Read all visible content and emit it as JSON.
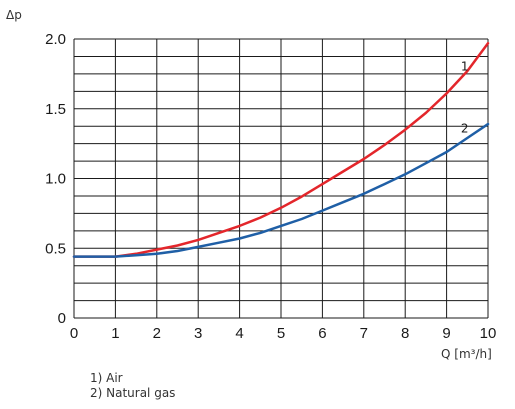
{
  "chart_data": {
    "type": "line",
    "ylabel": "Δp",
    "xlabel": "Q [m³/h]",
    "xlim": [
      0,
      10
    ],
    "ylim": [
      0,
      2.0
    ],
    "x_ticks": [
      0,
      1,
      2,
      3,
      4,
      5,
      6,
      7,
      8,
      9,
      10
    ],
    "y_ticks": [
      "0",
      "0.5",
      "1.0",
      "1.5",
      "2.0"
    ],
    "grid": true,
    "x": [
      0,
      0.5,
      1,
      1.5,
      2,
      2.5,
      3,
      3.5,
      4,
      4.5,
      5,
      5.5,
      6,
      6.5,
      7,
      7.5,
      8,
      8.5,
      9,
      9.5,
      10
    ],
    "series": [
      {
        "name": "1",
        "color": "#e3262b",
        "values": [
          0.44,
          0.44,
          0.44,
          0.46,
          0.49,
          0.52,
          0.56,
          0.61,
          0.66,
          0.72,
          0.79,
          0.87,
          0.96,
          1.05,
          1.14,
          1.24,
          1.35,
          1.47,
          1.61,
          1.77,
          1.97
        ]
      },
      {
        "name": "2",
        "color": "#1f5fa6",
        "values": [
          0.44,
          0.44,
          0.44,
          0.45,
          0.46,
          0.48,
          0.51,
          0.54,
          0.57,
          0.61,
          0.66,
          0.71,
          0.77,
          0.83,
          0.89,
          0.96,
          1.03,
          1.11,
          1.19,
          1.29,
          1.39
        ]
      }
    ],
    "legend": [
      "1) Air",
      "2) Natural gas"
    ]
  }
}
